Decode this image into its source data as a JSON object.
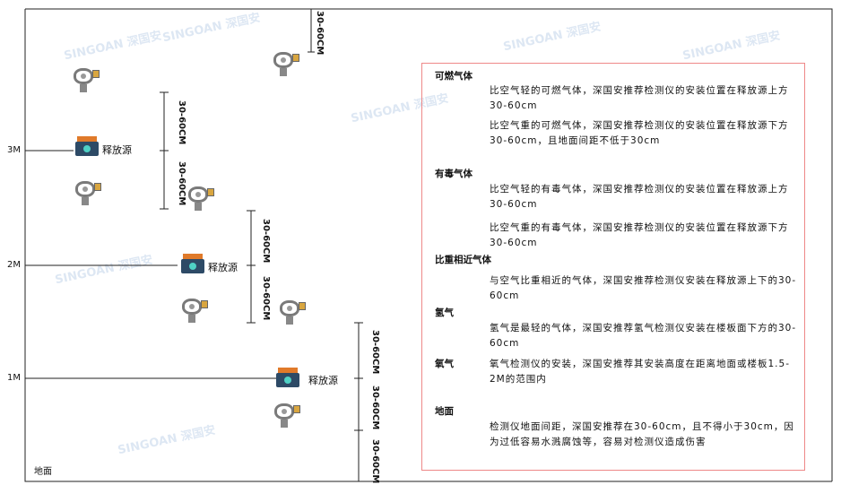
{
  "levels": [
    "3M",
    "2M",
    "1M"
  ],
  "ground_label": "地面",
  "source_label": "释放源",
  "dimension_label": "30-60CM",
  "watermark": "SINGOAN 深国安",
  "panel": {
    "sections": [
      {
        "heading": "可燃气体",
        "paras": [
          "比空气轻的可燃气体，深国安推荐检测仪的安装位置在释放源上方30-60cm",
          "比空气重的可燃气体，深国安推荐检测仪的安装位置在释放源下方30-60cm，且地面间距不低于30cm"
        ]
      },
      {
        "heading": "有毒气体",
        "paras": [
          "比空气轻的有毒气体，深国安推荐检测仪的安装位置在释放源上方30-60cm",
          "比空气重的有毒气体，深国安推荐检测仪的安装位置在释放源下方30-60cm"
        ]
      },
      {
        "heading": "比重相近气体",
        "paras": [
          "与空气比重相近的气体，深国安推荐检测仪安装在释放源上下的30-60cm"
        ]
      },
      {
        "heading": "氢气",
        "paras": [
          "氢气是最轻的气体，深国安推荐氢气检测仪安装在楼板面下方的30-60cm"
        ]
      },
      {
        "heading": "氧气",
        "paras": [
          "氧气检测仪的安装，深国安推荐其安装高度在距离地面或楼板1.5-2M的范围内"
        ]
      },
      {
        "heading": "地面",
        "paras": [
          "检测仪地面间距，深国安推荐在30-60cm，且不得小于30cm，因为过低容易水溅腐蚀等，容易对检测仪造成伤害"
        ]
      }
    ]
  },
  "colors": {
    "panel_border": "#ee8888",
    "source_top": "#e07a2a",
    "source_body": "#2d4a66"
  }
}
